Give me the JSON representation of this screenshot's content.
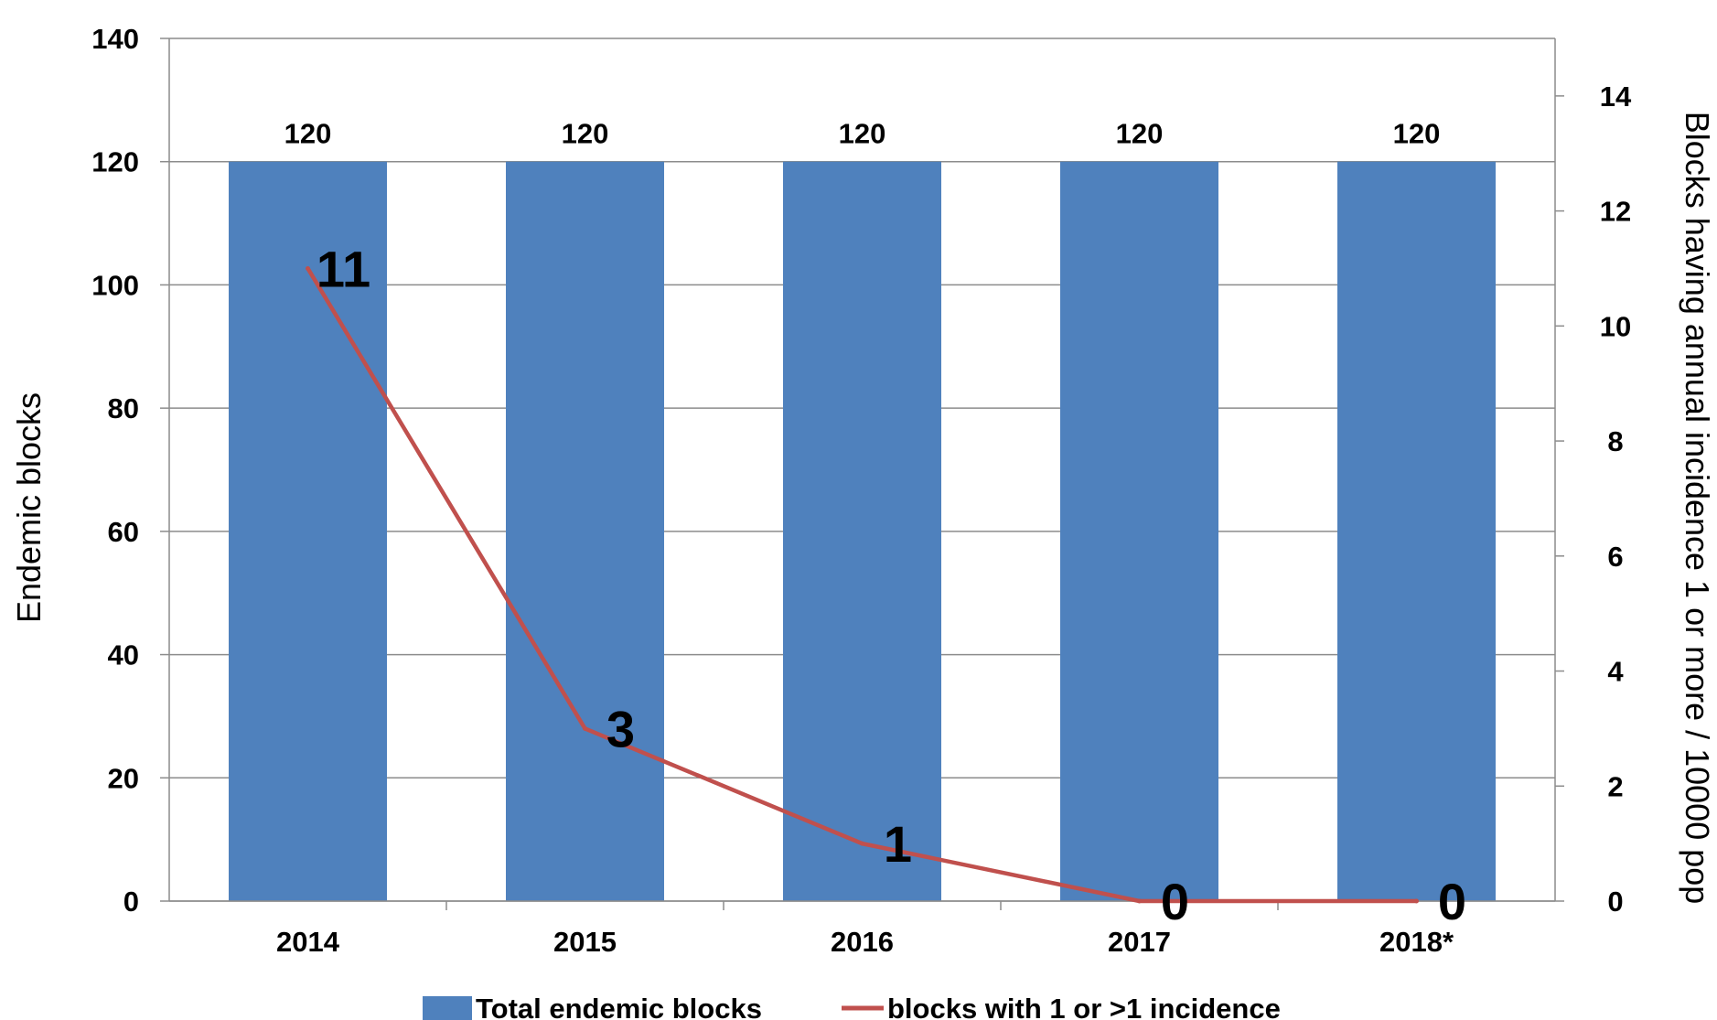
{
  "chart_data": {
    "type": "bar",
    "categories": [
      "2014",
      "2015",
      "2016",
      "2017",
      "2018*"
    ],
    "series": [
      {
        "name": "Total endemic blocks",
        "type": "bar",
        "axis": "left",
        "values": [
          120,
          120,
          120,
          120,
          120
        ],
        "color": "#4F81BD",
        "data_labels": [
          "120",
          "120",
          "120",
          "120",
          "120"
        ]
      },
      {
        "name": "blocks with 1 or >1 incidence",
        "type": "line",
        "axis": "right",
        "values": [
          11,
          3,
          1,
          0,
          0
        ],
        "color": "#C0504D",
        "data_labels": [
          "11",
          "3",
          "1",
          "0",
          "0"
        ]
      }
    ],
    "ylabel": "Endemic blocks",
    "y2label": "Blocks having annual incidence  1 or more / 10000 pop",
    "ylim": [
      0,
      140
    ],
    "y2lim": [
      0,
      15
    ],
    "yticks": [
      "0",
      "20",
      "40",
      "60",
      "80",
      "100",
      "120",
      "140"
    ],
    "y2ticks": [
      "0",
      "2",
      "4",
      "6",
      "8",
      "10",
      "12",
      "14"
    ],
    "grid": true,
    "legend_position": "bottom"
  }
}
